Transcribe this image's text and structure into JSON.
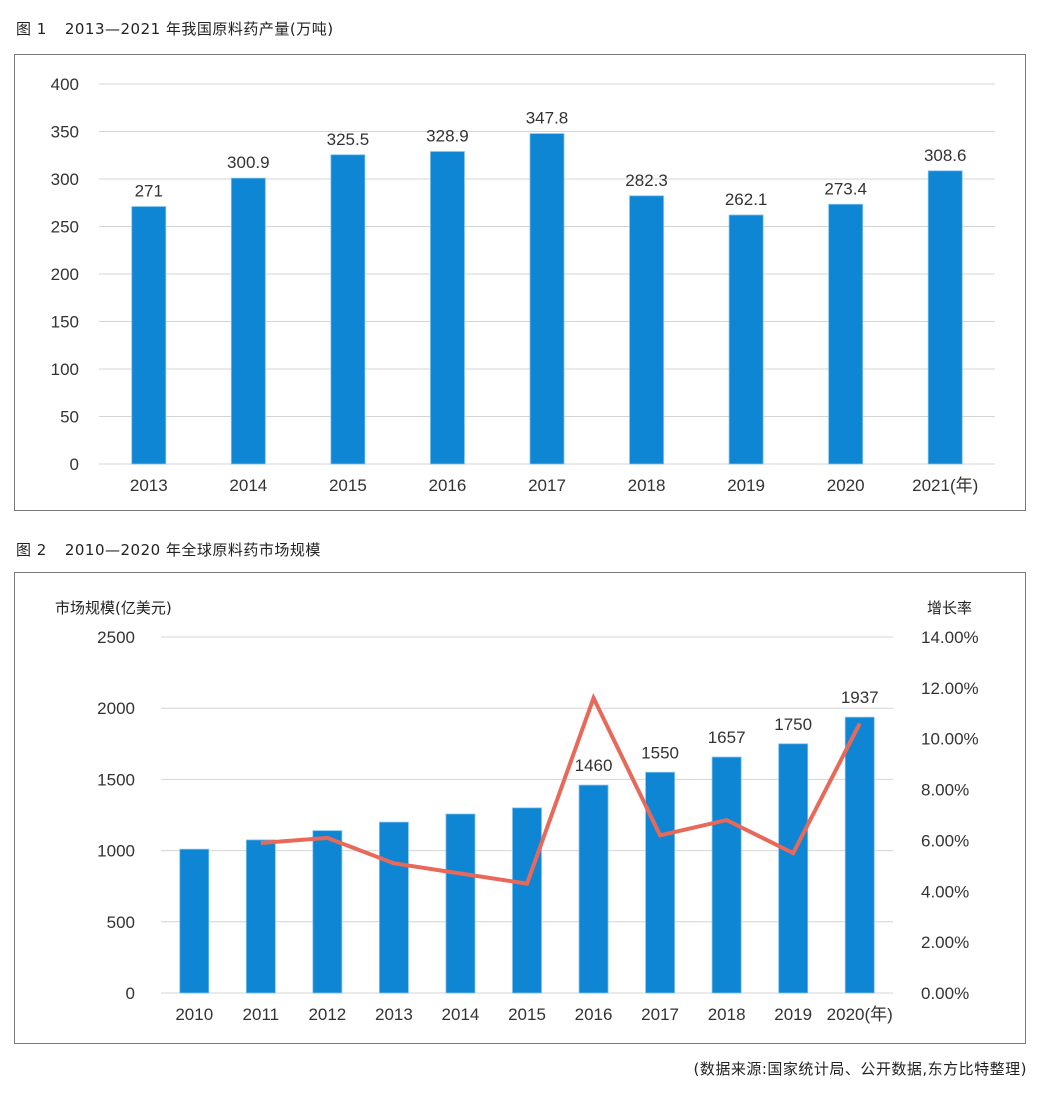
{
  "figure1": {
    "number": "图 1",
    "title": "2013—2021 年我国原料药产量(万吨)"
  },
  "figure2": {
    "number": "图 2",
    "title": "2010—2020 年全球原料药市场规模"
  },
  "source_note": "(数据来源:国家统计局、公开数据,东方比特整理)",
  "colors": {
    "bar": "#0e86d4",
    "line": "#e8695a",
    "grid": "#d4d4d4",
    "frame": "#7a7a7a"
  },
  "chart_data": [
    {
      "type": "bar",
      "title": "2013—2021 年我国原料药产量(万吨)",
      "xlabel": "",
      "ylabel": "",
      "categories": [
        "2013",
        "2014",
        "2015",
        "2016",
        "2017",
        "2018",
        "2019",
        "2020",
        "2021(年)"
      ],
      "values": [
        271,
        300.9,
        325.5,
        328.9,
        347.8,
        282.3,
        262.1,
        273.4,
        308.6
      ],
      "data_labels": [
        "271",
        "300.9",
        "325.5",
        "328.9",
        "347.8",
        "282.3",
        "262.1",
        "273.4",
        "308.6"
      ],
      "ylim": [
        0,
        400
      ],
      "yticks": [
        0,
        50,
        100,
        150,
        200,
        250,
        300,
        350,
        400
      ],
      "ytick_labels": [
        "0",
        "50",
        "100",
        "150",
        "200",
        "250",
        "300",
        "350",
        "400"
      ],
      "grid": true,
      "legend": "none"
    },
    {
      "type": "bar",
      "title": "2010—2020 年全球原料药市场规模",
      "categories": [
        "2010",
        "2011",
        "2012",
        "2013",
        "2014",
        "2015",
        "2016",
        "2017",
        "2018",
        "2019",
        "2020(年)"
      ],
      "ylabel": "市场规模(亿美元)",
      "y2label": "增长率",
      "ylim": [
        0,
        2500
      ],
      "yticks": [
        0,
        500,
        1000,
        1500,
        2000,
        2500
      ],
      "ytick_labels": [
        "0",
        "500",
        "1000",
        "1500",
        "2000",
        "2500"
      ],
      "y2lim": [
        0,
        14
      ],
      "y2ticks": [
        0,
        2,
        4,
        6,
        8,
        10,
        12,
        14
      ],
      "y2tick_labels": [
        "0.00%",
        "2.00%",
        "4.00%",
        "6.00%",
        "8.00%",
        "10.00%",
        "12.00%",
        "14.00%"
      ],
      "grid": true,
      "legend": "none",
      "series": [
        {
          "name": "市场规模(亿美元)",
          "type": "bar",
          "axis": "left",
          "values": [
            1010,
            1075,
            1140,
            1200,
            1257,
            1300,
            1460,
            1550,
            1657,
            1750,
            1937
          ],
          "data_labels": [
            null,
            null,
            null,
            null,
            null,
            null,
            "1460",
            "1550",
            "1657",
            "1750",
            "1937"
          ]
        },
        {
          "name": "增长率",
          "type": "line",
          "axis": "right",
          "unit": "%",
          "values": [
            null,
            5.9,
            6.1,
            5.1,
            4.7,
            4.3,
            11.6,
            6.2,
            6.8,
            5.5,
            10.6
          ]
        }
      ]
    }
  ]
}
